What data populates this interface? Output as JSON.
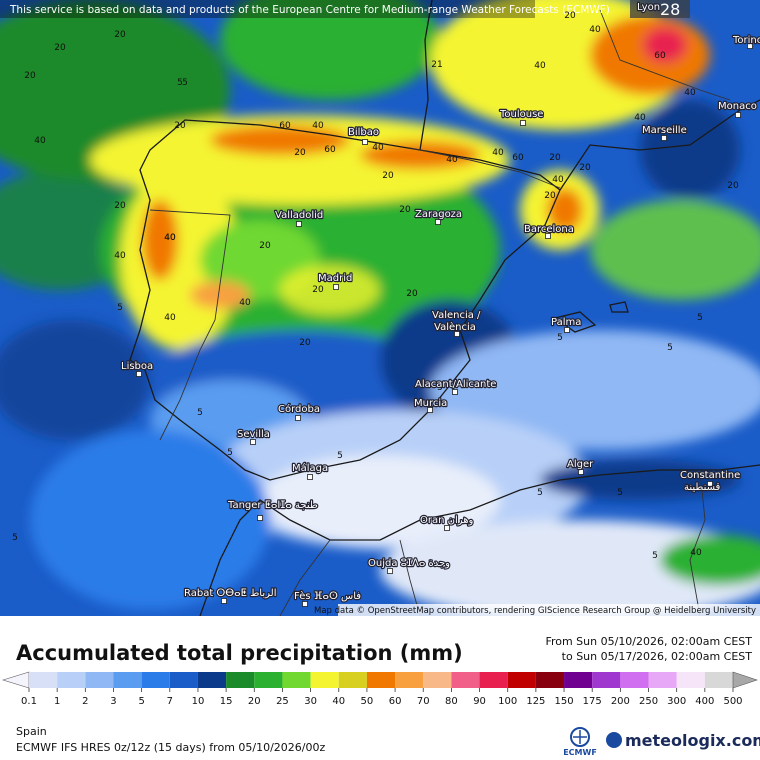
{
  "notice": "This service is based on data and products of the European Centre for Medium-range Weather Forecasts (ECMWF)",
  "corner_city": "Lyon",
  "corner_value": "28",
  "cities": [
    "Torino",
    "Monaco",
    "Toulouse",
    "Marseille",
    "Bilbao",
    "Valladolid",
    "Zaragoza",
    "Barcelona",
    "Madrid",
    "Valencia /",
    "València",
    "Palma",
    "Lisboa",
    "Alacant/Alicante",
    "Murcia",
    "Córdoba",
    "Sevilla",
    "Málaga",
    "Alger",
    "Constantine",
    "قسنطينة",
    "Tanger ⵟⴰⵏⵊⴰ طنجة",
    "Oran وهران",
    "Oujda ⵓⵊⴷⴰ وجدة",
    "Rabat ⵔⴱⴰⵟ الرباط",
    "Fès ⴼⴰⵙ فاس"
  ],
  "contour_labels": [
    20,
    20,
    20,
    5,
    5,
    20,
    21,
    40,
    40,
    40,
    40,
    60,
    40,
    60,
    40,
    20,
    40,
    60,
    40,
    60,
    40,
    40,
    40,
    20,
    20,
    40,
    40,
    20,
    20,
    40,
    40,
    20,
    20,
    20,
    20,
    20,
    5,
    5,
    5,
    5,
    5,
    5,
    5,
    5,
    5,
    5,
    5,
    5,
    20,
    20,
    20,
    40
  ],
  "attribution": "Map data © OpenStreetMap contributors, rendering GIScience Research Group @ Heidelberg University",
  "legend": {
    "title": "Accumulated total precipitation (mm)",
    "from": "From Sun 05/10/2026, 02:00am CEST",
    "to": "to Sun 05/17/2026, 02:00am CEST",
    "ticks": [
      0.1,
      1,
      2,
      3,
      5,
      7,
      10,
      15,
      20,
      25,
      30,
      40,
      50,
      60,
      70,
      80,
      90,
      100,
      125,
      150,
      175,
      200,
      250,
      300,
      400,
      500
    ],
    "colors": [
      "#f4f4fc",
      "#d8e0f8",
      "#b8d0f8",
      "#90b8f4",
      "#5a9cf0",
      "#2a7ce8",
      "#1a5cc8",
      "#0c3a8a",
      "#1a8a2a",
      "#2cb030",
      "#70d830",
      "#f4f430",
      "#d8d020",
      "#f07800",
      "#f8a040",
      "#f8b888",
      "#f06088",
      "#e82050",
      "#c00000",
      "#880010",
      "#700090",
      "#a038d0",
      "#d070f0",
      "#e8a8f8",
      "#f6e4f8",
      "#d8d8d8",
      "#a8a8a8"
    ]
  },
  "region": "Spain",
  "model": "ECMWF IFS HRES 0z/12z (15 days) from 05/10/2026/00z",
  "logo_left": "ECMWF",
  "logo_right": "meteologix.com"
}
